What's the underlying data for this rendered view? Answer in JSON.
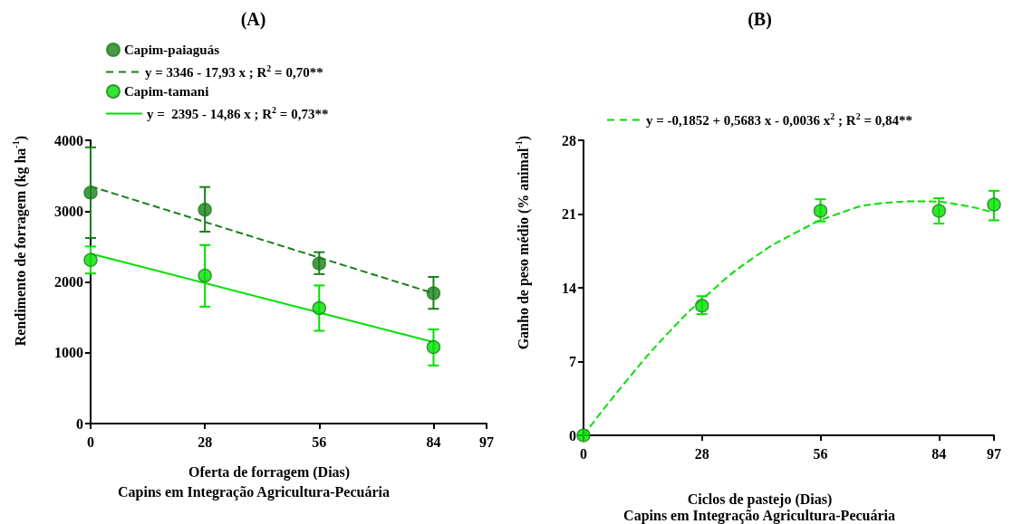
{
  "chart_data": [
    {
      "type": "scatter",
      "title": "(A)",
      "xlabel": "Oferta de forragem (Dias)",
      "ylabel": "Rendimento de forragem (kg ha$^{-1}$)",
      "annotations": [
        "Capins em Integração Agricultura-Pecuária"
      ],
      "xlim": [
        0,
        97
      ],
      "xticks": [
        0,
        28,
        56,
        84,
        97
      ],
      "ylim": [
        0,
        4000
      ],
      "yticks": [
        0,
        1000,
        2000,
        3000,
        4000
      ],
      "legend": "top left",
      "marker": "circle",
      "series": [
        {
          "name": "Capim-paiaguás",
          "color": "#1a7f1a",
          "x": [
            0,
            28,
            56,
            84
          ],
          "values": [
            3260,
            3020,
            2260,
            1840
          ],
          "errors": [
            [
              2620,
              3900
            ],
            [
              2710,
              3340
            ],
            [
              2110,
              2420
            ],
            [
              1620,
              2070
            ]
          ]
        },
        {
          "name": "y = 3346 - 17,93 x ; R$^{2}$ = 0,70**",
          "type": "line",
          "line_style": "dashed",
          "marker": "none",
          "color": "#1a7f1a",
          "x": [
            0,
            84
          ],
          "values": [
            3350,
            1840
          ]
        },
        {
          "name": "Capim-tamani",
          "color": "#00e000",
          "x": [
            0,
            28,
            56,
            84
          ],
          "values": [
            2310,
            2090,
            1630,
            1080
          ],
          "errors": [
            [
              2120,
              2500
            ],
            [
              1650,
              2520
            ],
            [
              1310,
              1950
            ],
            [
              820,
              1330
            ]
          ]
        },
        {
          "name": "y =  2395 - 14,86 x ; R$^{2}$ = 0,73**",
          "type": "line",
          "line_style": "solid",
          "marker": "none",
          "color": "#00e000",
          "x": [
            0,
            84
          ],
          "values": [
            2400,
            1150
          ]
        }
      ]
    },
    {
      "type": "scatter",
      "title": "(B)",
      "xlabel": "Ciclos de pastejo (Dias)",
      "ylabel": "Ganho de peso médio (% animal$^{-1}$)",
      "annotations": [
        "Capins em Integração Agricultura-Pecuária"
      ],
      "xlim": [
        0,
        97
      ],
      "xticks": [
        0,
        28,
        56,
        84,
        97
      ],
      "ylim": [
        0,
        28
      ],
      "yticks": [
        0,
        7,
        14,
        21,
        28
      ],
      "legend": "top",
      "marker": "circle",
      "series": [
        {
          "color": "#00e000",
          "x": [
            0,
            28,
            56,
            84,
            97
          ],
          "values": [
            0,
            12.3,
            21.3,
            21.3,
            21.9
          ],
          "errors": [
            null,
            [
              11.5,
              13.2
            ],
            [
              20.3,
              22.4
            ],
            [
              20.1,
              22.5
            ],
            [
              20.4,
              23.2
            ]
          ]
        },
        {
          "name": "y = -0,1852 + 0,5683 x - 0,0036 x$^{2}$ ; R$^{2}$ = 0,84**",
          "type": "line",
          "line_style": "dashed",
          "marker": "none",
          "color": "#00e000",
          "x": [
            0,
            10,
            20,
            30,
            40,
            50,
            60,
            70,
            80,
            90,
            97
          ],
          "values": [
            0,
            5.1,
            9.7,
            13.6,
            16.8,
            19.2,
            21.0,
            22.0,
            22.2,
            21.8,
            21.1
          ]
        }
      ]
    }
  ]
}
